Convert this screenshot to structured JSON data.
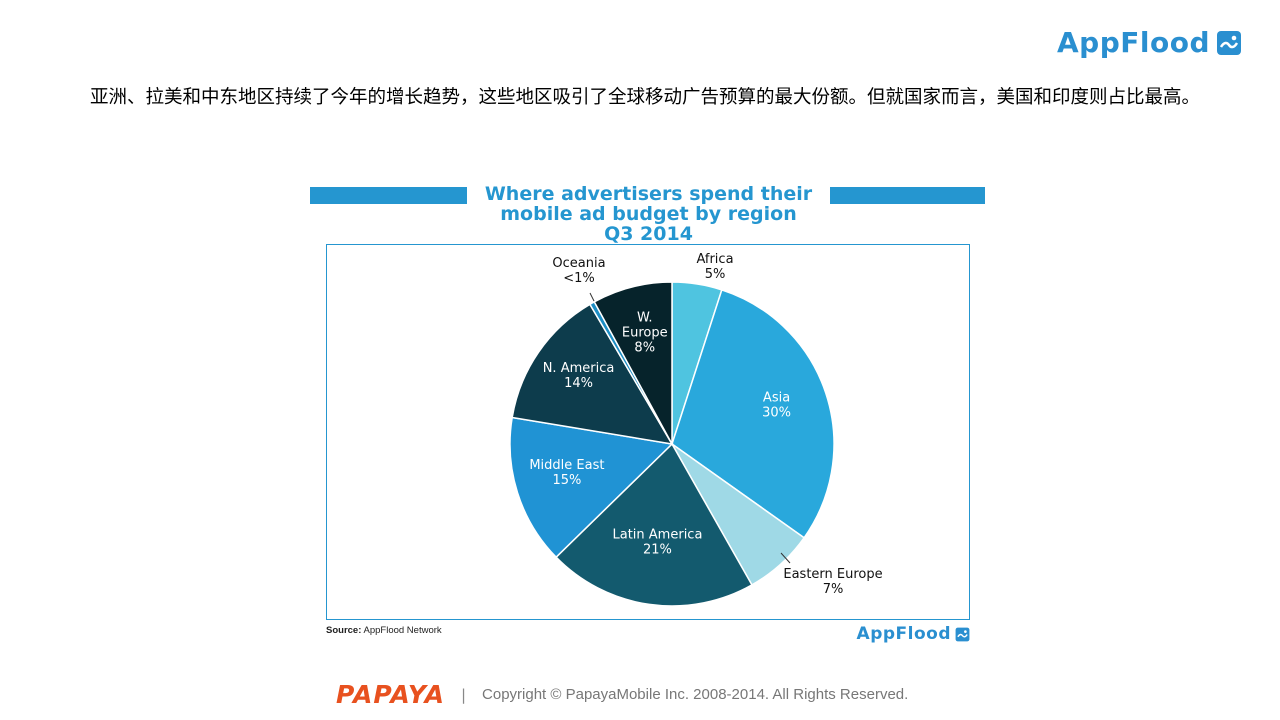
{
  "header": {
    "brand": "AppFlood",
    "headline": "亚洲、拉美和中东地区持续了今年的增长趋势，这些地区吸引了全球移动广告预算的最大份额。但就国家而言，美国和印度则占比最高。"
  },
  "chart_data": {
    "type": "pie",
    "title_lines": [
      "Where advertisers spend their",
      "mobile ad budget by region",
      "Q3 2014"
    ],
    "slices": [
      {
        "name": "Africa",
        "value": 5,
        "label": "5%",
        "color": "#4fc4e0"
      },
      {
        "name": "Asia",
        "value": 30,
        "label": "30%",
        "color": "#29a8dc"
      },
      {
        "name": "Eastern Europe",
        "value": 7,
        "label": "7%",
        "color": "#9fd9e6"
      },
      {
        "name": "Latin America",
        "value": 21,
        "label": "21%",
        "color": "#135a6e"
      },
      {
        "name": "Middle East",
        "value": 15,
        "label": "15%",
        "color": "#2093d4"
      },
      {
        "name": "N. America",
        "value": 14,
        "label": "14%",
        "color": "#0d3c4c"
      },
      {
        "name": "Oceania",
        "value": 0.5,
        "label": "<1%",
        "color": "#1d8ec4"
      },
      {
        "name": "W. Europe",
        "value": 8,
        "label": "8%",
        "color": "#06232b"
      }
    ],
    "source_label": "Source:",
    "source_text": "AppFlood Network"
  },
  "footer": {
    "brand": "PAPAYA",
    "separator": "|",
    "copyright": "Copyright © PapayaMobile Inc. 2008-2014. All Rights Reserved."
  }
}
